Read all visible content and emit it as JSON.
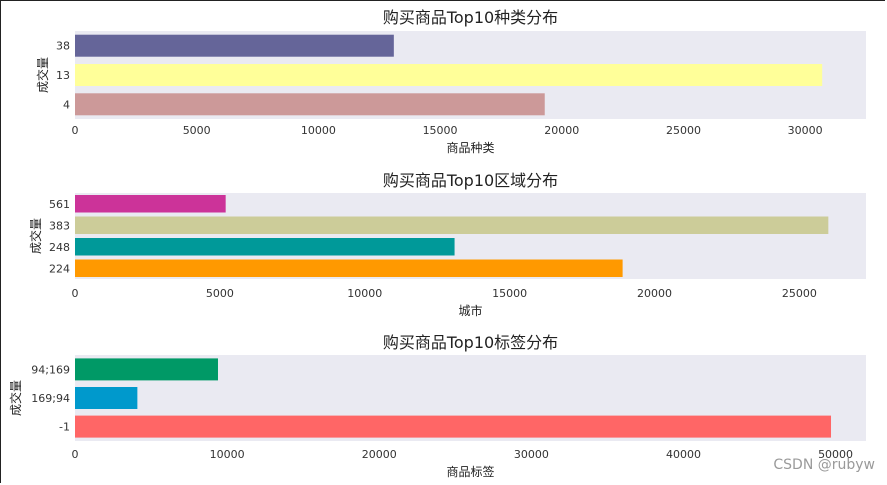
{
  "chart_data": [
    {
      "type": "bar",
      "orientation": "horizontal",
      "title": "购买商品Top10种类分布",
      "xlabel": "商品种类",
      "ylabel": "成交量",
      "categories": [
        "38",
        "13",
        "4"
      ],
      "values": [
        13100,
        30700,
        19300
      ],
      "colors": [
        "#656599",
        "#ffff99",
        "#cc9999"
      ],
      "xlim": [
        0,
        32500
      ],
      "xticks": [
        0,
        5000,
        10000,
        15000,
        20000,
        25000,
        30000
      ],
      "grid": false
    },
    {
      "type": "bar",
      "orientation": "horizontal",
      "title": "购买商品Top10区域分布",
      "xlabel": "城市",
      "ylabel": "成交量",
      "categories": [
        "561",
        "383",
        "248",
        "224"
      ],
      "values": [
        5200,
        26000,
        13100,
        18900
      ],
      "colors": [
        "#cc3399",
        "#cccc99",
        "#009999",
        "#ff9900"
      ],
      "xlim": [
        0,
        27300
      ],
      "xticks": [
        0,
        5000,
        10000,
        15000,
        20000,
        25000
      ],
      "grid": false
    },
    {
      "type": "bar",
      "orientation": "horizontal",
      "title": "购买商品Top10标签分布",
      "xlabel": "商品标签",
      "ylabel": "成交量",
      "categories": [
        "94;169",
        "169;94",
        "-1"
      ],
      "values": [
        9400,
        4100,
        49700
      ],
      "colors": [
        "#009966",
        "#0099cc",
        "#ff6666"
      ],
      "xlim": [
        0,
        52000
      ],
      "xticks": [
        0,
        10000,
        20000,
        30000,
        40000,
        50000
      ],
      "grid": false
    }
  ],
  "watermark": "CSDN @rubyw"
}
